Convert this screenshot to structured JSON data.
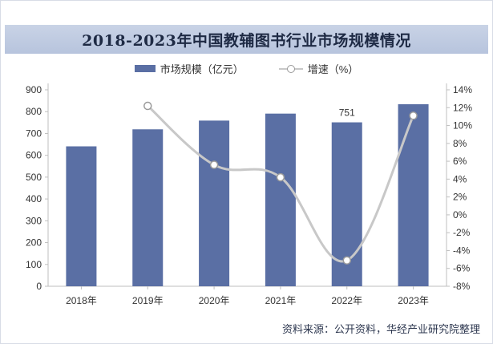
{
  "title": "2018-2023年中国教辅图书行业市场规模情况",
  "legend": {
    "bar_label": "市场规模（亿元）",
    "line_label": "增速（%）"
  },
  "source": "资料来源：公开资料，华经产业研究院整理",
  "colors": {
    "bar": "#5a6fa4",
    "line": "#c8c8c8",
    "title_bar": "#bfcbe1"
  },
  "chart_data": {
    "type": "bar",
    "categories": [
      "2018年",
      "2019年",
      "2020年",
      "2021年",
      "2022年",
      "2023年"
    ],
    "series": [
      {
        "name": "市场规模（亿元）",
        "type": "bar",
        "axis": "left",
        "values": [
          641,
          719,
          759,
          791,
          751,
          834
        ]
      },
      {
        "name": "增速（%）",
        "type": "line",
        "axis": "right",
        "values": [
          null,
          12.2,
          5.6,
          4.2,
          -5.1,
          11.1
        ]
      }
    ],
    "data_labels": [
      {
        "category": "2022年",
        "text": "751"
      }
    ],
    "y_left": {
      "ylim": [
        0,
        900
      ],
      "ticks": [
        0,
        100,
        200,
        300,
        400,
        500,
        600,
        700,
        800,
        900
      ]
    },
    "y_right": {
      "ylim": [
        -8,
        14
      ],
      "ticks": [
        -8,
        -6,
        -4,
        -2,
        0,
        2,
        4,
        6,
        8,
        10,
        12,
        14
      ],
      "unit": "%"
    },
    "grid": false,
    "legend_position": "top-center"
  }
}
